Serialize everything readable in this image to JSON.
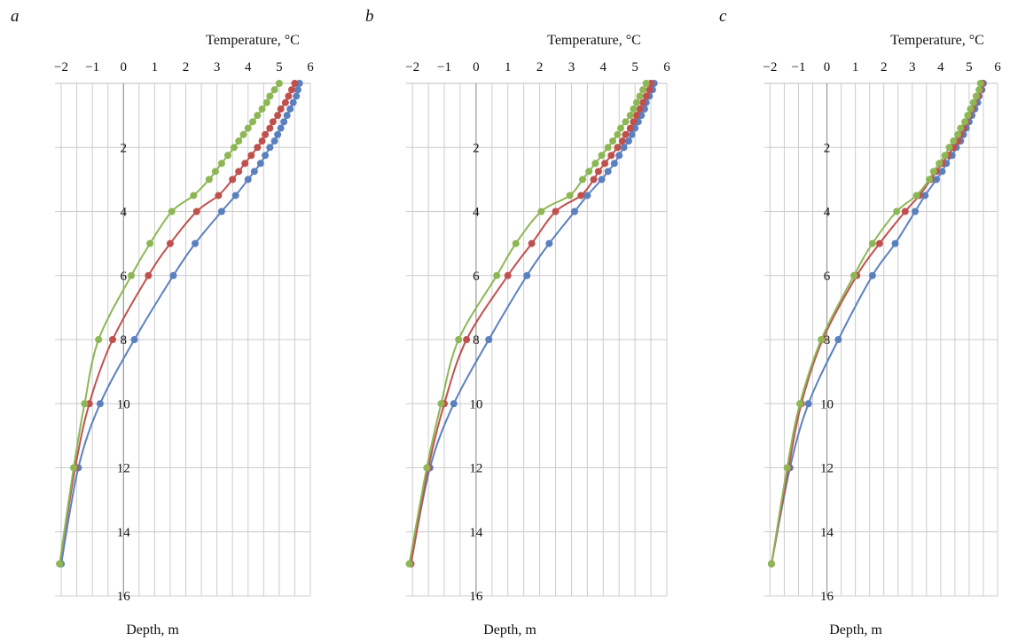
{
  "colors": {
    "series_a": "#5b80c0",
    "series_b": "#c0504d",
    "series_c": "#8db654",
    "grid": "#cccccc"
  },
  "chart_data": [
    {
      "type": "line",
      "panel": "a",
      "title": "",
      "xlabel": "Temperature, °C",
      "ylabel": "Depth, m",
      "xlim": [
        -2.2,
        6
      ],
      "ylim": [
        0,
        16
      ],
      "x_ticks": [
        "−2",
        "−1",
        "0",
        "1",
        "2",
        "3",
        "4",
        "5",
        "6"
      ],
      "y_ticks": [
        "2",
        "4",
        "6",
        "8",
        "10",
        "12",
        "14",
        "16"
      ],
      "series": [
        {
          "name": "blue",
          "color": "#5b80c0",
          "points": [
            [
              5.65,
              0
            ],
            [
              5.6,
              0.2
            ],
            [
              5.55,
              0.4
            ],
            [
              5.45,
              0.6
            ],
            [
              5.35,
              0.8
            ],
            [
              5.25,
              1.0
            ],
            [
              5.15,
              1.2
            ],
            [
              5.05,
              1.4
            ],
            [
              4.95,
              1.6
            ],
            [
              4.85,
              1.8
            ],
            [
              4.7,
              2.0
            ],
            [
              4.55,
              2.25
            ],
            [
              4.4,
              2.5
            ],
            [
              4.2,
              2.75
            ],
            [
              4.0,
              3.0
            ],
            [
              3.6,
              3.5
            ],
            [
              3.15,
              4.0
            ],
            [
              2.3,
              5.0
            ],
            [
              1.6,
              6.0
            ],
            [
              0.35,
              8.0
            ],
            [
              -0.75,
              10.0
            ],
            [
              -1.45,
              12.0
            ],
            [
              -2.0,
              15.0
            ]
          ]
        },
        {
          "name": "red",
          "color": "#c0504d",
          "points": [
            [
              5.5,
              0
            ],
            [
              5.4,
              0.2
            ],
            [
              5.3,
              0.4
            ],
            [
              5.2,
              0.6
            ],
            [
              5.05,
              0.8
            ],
            [
              4.95,
              1.0
            ],
            [
              4.8,
              1.2
            ],
            [
              4.7,
              1.4
            ],
            [
              4.55,
              1.6
            ],
            [
              4.45,
              1.8
            ],
            [
              4.3,
              2.0
            ],
            [
              4.1,
              2.25
            ],
            [
              3.9,
              2.5
            ],
            [
              3.7,
              2.75
            ],
            [
              3.5,
              3.0
            ],
            [
              3.05,
              3.5
            ],
            [
              2.35,
              4.0
            ],
            [
              1.5,
              5.0
            ],
            [
              0.8,
              6.0
            ],
            [
              -0.35,
              8.0
            ],
            [
              -1.1,
              10.0
            ],
            [
              -1.55,
              12.0
            ],
            [
              -2.05,
              15.0
            ]
          ]
        },
        {
          "name": "green",
          "color": "#8db654",
          "points": [
            [
              5.0,
              0
            ],
            [
              4.85,
              0.2
            ],
            [
              4.7,
              0.4
            ],
            [
              4.6,
              0.6
            ],
            [
              4.45,
              0.8
            ],
            [
              4.3,
              1.0
            ],
            [
              4.15,
              1.2
            ],
            [
              4.0,
              1.4
            ],
            [
              3.85,
              1.6
            ],
            [
              3.7,
              1.8
            ],
            [
              3.55,
              2.0
            ],
            [
              3.35,
              2.25
            ],
            [
              3.15,
              2.5
            ],
            [
              2.95,
              2.75
            ],
            [
              2.75,
              3.0
            ],
            [
              2.25,
              3.5
            ],
            [
              1.55,
              4.0
            ],
            [
              0.85,
              5.0
            ],
            [
              0.25,
              6.0
            ],
            [
              -0.8,
              8.0
            ],
            [
              -1.25,
              10.0
            ],
            [
              -1.6,
              12.0
            ],
            [
              -2.05,
              15.0
            ]
          ]
        }
      ]
    },
    {
      "type": "line",
      "panel": "b",
      "title": "",
      "xlabel": "Temperature, °C",
      "ylabel": "Depth, m",
      "xlim": [
        -2.2,
        6
      ],
      "ylim": [
        0,
        16
      ],
      "x_ticks": [
        "−2",
        "−1",
        "0",
        "1",
        "2",
        "3",
        "4",
        "5",
        "6"
      ],
      "y_ticks": [
        "2",
        "4",
        "6",
        "8",
        "10",
        "12",
        "14",
        "16"
      ],
      "series": [
        {
          "name": "blue",
          "color": "#5b80c0",
          "points": [
            [
              5.6,
              0
            ],
            [
              5.55,
              0.2
            ],
            [
              5.45,
              0.4
            ],
            [
              5.35,
              0.6
            ],
            [
              5.3,
              0.8
            ],
            [
              5.2,
              1.0
            ],
            [
              5.1,
              1.2
            ],
            [
              5.0,
              1.4
            ],
            [
              4.9,
              1.6
            ],
            [
              4.8,
              1.8
            ],
            [
              4.65,
              2.0
            ],
            [
              4.5,
              2.25
            ],
            [
              4.35,
              2.5
            ],
            [
              4.15,
              2.75
            ],
            [
              3.95,
              3.0
            ],
            [
              3.5,
              3.5
            ],
            [
              3.1,
              4.0
            ],
            [
              2.3,
              5.0
            ],
            [
              1.6,
              6.0
            ],
            [
              0.4,
              8.0
            ],
            [
              -0.7,
              10.0
            ],
            [
              -1.45,
              12.0
            ],
            [
              -2.05,
              15.0
            ]
          ]
        },
        {
          "name": "red",
          "color": "#c0504d",
          "points": [
            [
              5.5,
              0
            ],
            [
              5.45,
              0.2
            ],
            [
              5.35,
              0.4
            ],
            [
              5.25,
              0.6
            ],
            [
              5.15,
              0.8
            ],
            [
              5.05,
              1.0
            ],
            [
              4.95,
              1.2
            ],
            [
              4.85,
              1.4
            ],
            [
              4.7,
              1.6
            ],
            [
              4.6,
              1.8
            ],
            [
              4.45,
              2.0
            ],
            [
              4.25,
              2.25
            ],
            [
              4.05,
              2.5
            ],
            [
              3.85,
              2.75
            ],
            [
              3.7,
              3.0
            ],
            [
              3.3,
              3.5
            ],
            [
              2.5,
              4.0
            ],
            [
              1.75,
              5.0
            ],
            [
              1.0,
              6.0
            ],
            [
              -0.3,
              8.0
            ],
            [
              -1.0,
              10.0
            ],
            [
              -1.5,
              12.0
            ],
            [
              -2.05,
              15.0
            ]
          ]
        },
        {
          "name": "green",
          "color": "#8db654",
          "points": [
            [
              5.35,
              0
            ],
            [
              5.25,
              0.2
            ],
            [
              5.15,
              0.4
            ],
            [
              5.05,
              0.6
            ],
            [
              4.95,
              0.8
            ],
            [
              4.85,
              1.0
            ],
            [
              4.7,
              1.2
            ],
            [
              4.55,
              1.4
            ],
            [
              4.45,
              1.6
            ],
            [
              4.3,
              1.8
            ],
            [
              4.15,
              2.0
            ],
            [
              3.95,
              2.25
            ],
            [
              3.75,
              2.5
            ],
            [
              3.55,
              2.75
            ],
            [
              3.35,
              3.0
            ],
            [
              2.95,
              3.5
            ],
            [
              2.05,
              4.0
            ],
            [
              1.25,
              5.0
            ],
            [
              0.65,
              6.0
            ],
            [
              -0.55,
              8.0
            ],
            [
              -1.1,
              10.0
            ],
            [
              -1.55,
              12.0
            ],
            [
              -2.1,
              15.0
            ]
          ]
        }
      ]
    },
    {
      "type": "line",
      "panel": "c",
      "title": "",
      "xlabel": "Temperature, °C",
      "ylabel": "Depth, m",
      "xlim": [
        -2.2,
        6
      ],
      "ylim": [
        0,
        16
      ],
      "x_ticks": [
        "−2",
        "−1",
        "0",
        "1",
        "2",
        "3",
        "4",
        "5",
        "6"
      ],
      "y_ticks": [
        "2",
        "4",
        "6",
        "8",
        "10",
        "12",
        "14",
        "16"
      ],
      "series": [
        {
          "name": "blue",
          "color": "#5b80c0",
          "points": [
            [
              5.5,
              0
            ],
            [
              5.45,
              0.2
            ],
            [
              5.35,
              0.4
            ],
            [
              5.3,
              0.6
            ],
            [
              5.2,
              0.8
            ],
            [
              5.1,
              1.0
            ],
            [
              5.0,
              1.2
            ],
            [
              4.9,
              1.4
            ],
            [
              4.8,
              1.6
            ],
            [
              4.7,
              1.8
            ],
            [
              4.55,
              2.0
            ],
            [
              4.4,
              2.25
            ],
            [
              4.2,
              2.5
            ],
            [
              4.05,
              2.75
            ],
            [
              3.85,
              3.0
            ],
            [
              3.45,
              3.5
            ],
            [
              3.1,
              4.0
            ],
            [
              2.4,
              5.0
            ],
            [
              1.6,
              6.0
            ],
            [
              0.4,
              8.0
            ],
            [
              -0.65,
              10.0
            ],
            [
              -1.3,
              12.0
            ],
            [
              -1.95,
              15.0
            ]
          ]
        },
        {
          "name": "red",
          "color": "#c0504d",
          "points": [
            [
              5.45,
              0
            ],
            [
              5.4,
              0.2
            ],
            [
              5.3,
              0.4
            ],
            [
              5.2,
              0.6
            ],
            [
              5.1,
              0.8
            ],
            [
              5.0,
              1.0
            ],
            [
              4.9,
              1.2
            ],
            [
              4.8,
              1.4
            ],
            [
              4.7,
              1.6
            ],
            [
              4.6,
              1.8
            ],
            [
              4.45,
              2.0
            ],
            [
              4.25,
              2.25
            ],
            [
              4.05,
              2.5
            ],
            [
              3.85,
              2.75
            ],
            [
              3.65,
              3.0
            ],
            [
              3.25,
              3.5
            ],
            [
              2.75,
              4.0
            ],
            [
              1.85,
              5.0
            ],
            [
              1.05,
              6.0
            ],
            [
              -0.15,
              8.0
            ],
            [
              -0.9,
              10.0
            ],
            [
              -1.35,
              12.0
            ],
            [
              -1.95,
              15.0
            ]
          ]
        },
        {
          "name": "green",
          "color": "#8db654",
          "points": [
            [
              5.4,
              0
            ],
            [
              5.35,
              0.2
            ],
            [
              5.25,
              0.4
            ],
            [
              5.15,
              0.6
            ],
            [
              5.05,
              0.8
            ],
            [
              4.95,
              1.0
            ],
            [
              4.85,
              1.2
            ],
            [
              4.7,
              1.4
            ],
            [
              4.6,
              1.6
            ],
            [
              4.45,
              1.8
            ],
            [
              4.3,
              2.0
            ],
            [
              4.15,
              2.25
            ],
            [
              3.95,
              2.5
            ],
            [
              3.75,
              2.75
            ],
            [
              3.6,
              3.0
            ],
            [
              3.15,
              3.5
            ],
            [
              2.45,
              4.0
            ],
            [
              1.6,
              5.0
            ],
            [
              0.95,
              6.0
            ],
            [
              -0.2,
              8.0
            ],
            [
              -0.95,
              10.0
            ],
            [
              -1.4,
              12.0
            ],
            [
              -1.95,
              15.0
            ]
          ]
        }
      ]
    }
  ]
}
